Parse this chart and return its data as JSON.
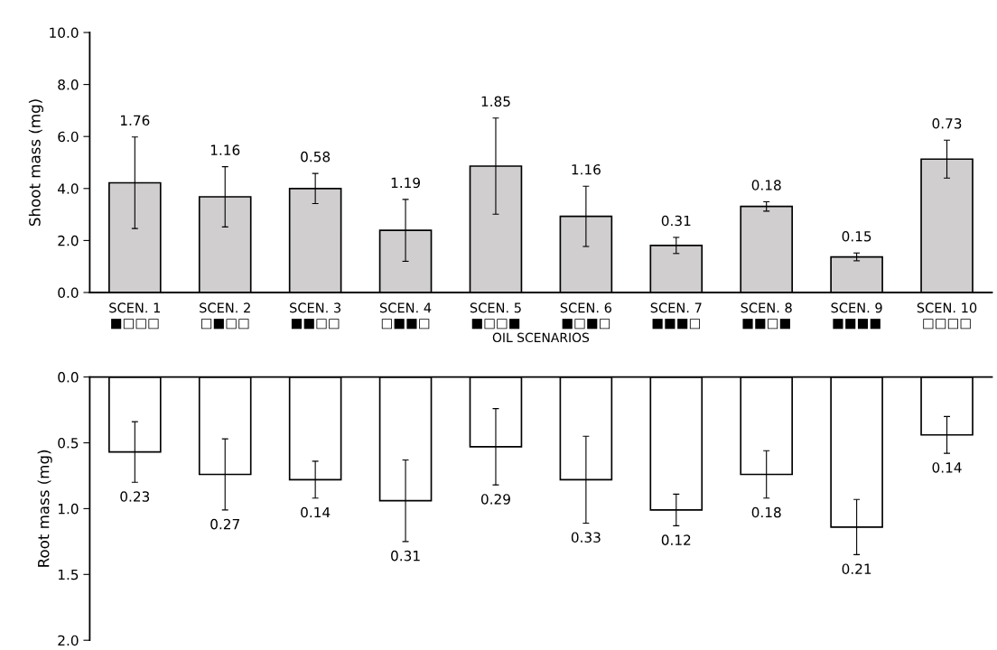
{
  "chart_data": [
    {
      "type": "bar",
      "ylabel": "Shoot mass (mg)",
      "xlabel": "OIL SCENARIOS",
      "categories": [
        "SCEN. 1\n■□□□",
        "SCEN. 2\n□■□□",
        "SCEN. 3\n■■□□",
        "SCEN. 4\n□■■□",
        "SCEN. 5\n■□□■",
        "SCEN. 6\n■□■□",
        "SCEN. 7\n■■■□",
        "SCEN. 8\n■■□■",
        "SCEN. 9\n■■■■",
        "SCEN. 10\n□□□□"
      ],
      "series": [
        {
          "color": "#d0cece",
          "values": [
            4.22,
            3.68,
            4.0,
            2.39,
            4.86,
            2.93,
            1.81,
            3.31,
            1.37,
            5.13
          ],
          "errors": [
            1.76,
            1.16,
            0.58,
            1.19,
            1.85,
            1.16,
            0.31,
            0.18,
            0.15,
            0.73
          ]
        }
      ],
      "annotations": [
        {
          "text": "1.76",
          "x": "SCEN. 1\n■□□□",
          "y": 5.98
        },
        {
          "text": "1.16",
          "x": "SCEN. 2\n□■□□",
          "y": 4.84
        },
        {
          "text": "0.58",
          "x": "SCEN. 3\n■■□□",
          "y": 4.58
        },
        {
          "text": "1.19",
          "x": "SCEN. 4\n□■■□",
          "y": 3.58
        },
        {
          "text": "1.85",
          "x": "SCEN. 5\n■□□■",
          "y": 6.71
        },
        {
          "text": "1.16",
          "x": "SCEN. 6\n■□■□",
          "y": 4.09
        },
        {
          "text": "0.31",
          "x": "SCEN. 7\n■■■□",
          "y": 2.12
        },
        {
          "text": "0.18",
          "x": "SCEN. 8\n■■□■",
          "y": 3.49
        },
        {
          "text": "0.15",
          "x": "SCEN. 9\n■■■■",
          "y": 1.52
        },
        {
          "text": "0.73",
          "x": "SCEN. 10\n□□□□",
          "y": 5.86
        }
      ],
      "ylim": [
        0,
        10
      ],
      "yticks": [
        {
          "value": 0,
          "label": "0.0"
        },
        {
          "value": 2,
          "label": "2.0"
        },
        {
          "value": 4,
          "label": "4.0"
        },
        {
          "value": 6,
          "label": "6.0"
        },
        {
          "value": 8,
          "label": "8.0"
        },
        {
          "value": 10,
          "label": "10.0"
        }
      ],
      "grid": false,
      "legend": false
    },
    {
      "type": "bar",
      "ylabel": "Root mass (mg)",
      "categories": [
        "SCEN. 1\n■□□□",
        "SCEN. 2\n□■□□",
        "SCEN. 3\n■■□□",
        "SCEN. 4\n□■■□",
        "SCEN. 5\n■□□■",
        "SCEN. 6\n■□■□",
        "SCEN. 7\n■■■□",
        "SCEN. 8\n■■□■",
        "SCEN. 9\n■■■■",
        "SCEN. 10\n□□□□"
      ],
      "series": [
        {
          "color": "#ffffff",
          "values": [
            0.57,
            0.74,
            0.78,
            0.94,
            0.53,
            0.78,
            1.01,
            0.74,
            1.14,
            0.44
          ],
          "errors": [
            0.23,
            0.27,
            0.14,
            0.31,
            0.29,
            0.33,
            0.12,
            0.18,
            0.21,
            0.14
          ]
        }
      ],
      "annotations": [
        {
          "text": "0.23",
          "x": "SCEN. 1\n■□□□",
          "y": 0.8
        },
        {
          "text": "0.27",
          "x": "SCEN. 2\n□■□□",
          "y": 1.01
        },
        {
          "text": "0.14",
          "x": "SCEN. 3\n■■□□",
          "y": 0.92
        },
        {
          "text": "0.31",
          "x": "SCEN. 4\n□■■□",
          "y": 1.25
        },
        {
          "text": "0.29",
          "x": "SCEN. 5\n■□□■",
          "y": 0.82
        },
        {
          "text": "0.33",
          "x": "SCEN. 6\n■□■□",
          "y": 1.11
        },
        {
          "text": "0.12",
          "x": "SCEN. 7\n■■■□",
          "y": 1.13
        },
        {
          "text": "0.18",
          "x": "SCEN. 8\n■■□■",
          "y": 0.92
        },
        {
          "text": "0.21",
          "x": "SCEN. 9\n■■■■",
          "y": 1.35
        },
        {
          "text": "0.14",
          "x": "SCEN. 10\n□□□□",
          "y": 0.58
        }
      ],
      "ylim": [
        2.0,
        0.0
      ],
      "yticks": [
        {
          "value": 0,
          "label": "0.0"
        },
        {
          "value": 0.5,
          "label": "0.5"
        },
        {
          "value": 1.0,
          "label": "1.0"
        },
        {
          "value": 1.5,
          "label": "1.5"
        },
        {
          "value": 2.0,
          "label": "2.0"
        }
      ],
      "tick_labels": "y",
      "grid": false,
      "legend": false
    }
  ]
}
